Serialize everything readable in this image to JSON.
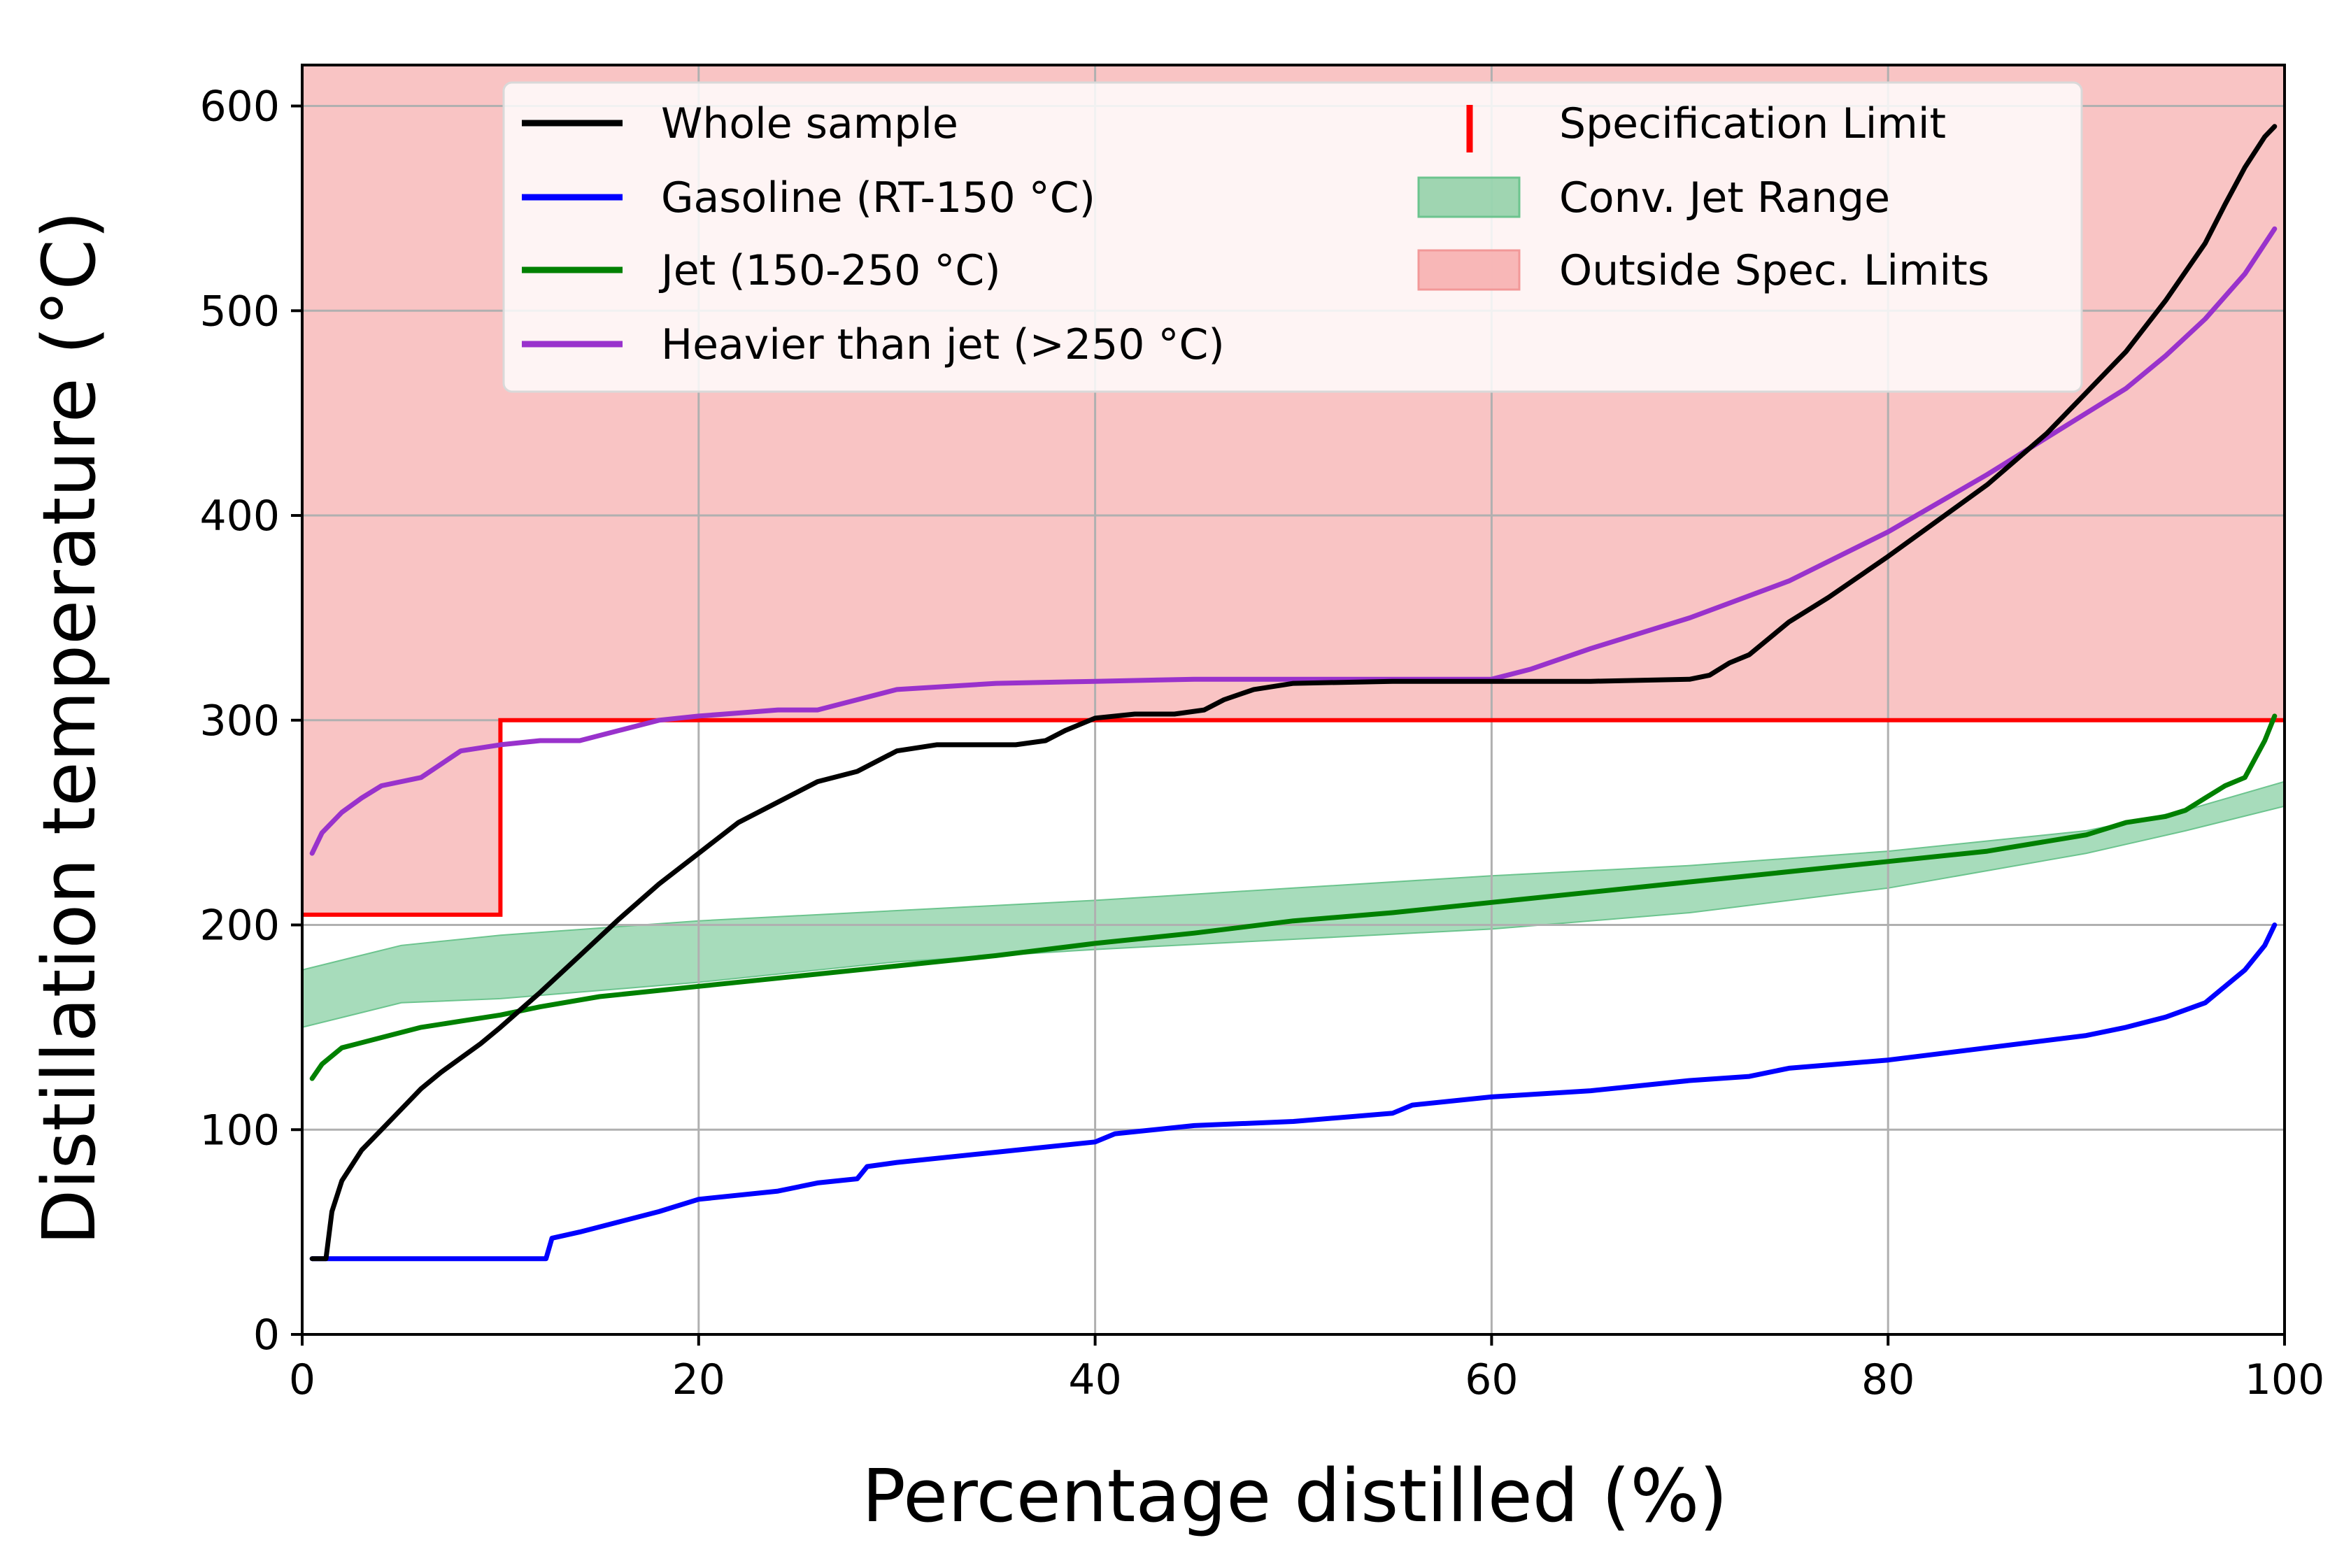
{
  "chart_data": {
    "type": "line",
    "title": "",
    "xlabel": "Percentage distilled (%)",
    "ylabel": "Distillation temperature (°C)",
    "xlim": [
      0,
      100
    ],
    "ylim": [
      0,
      620
    ],
    "xticks": [
      0,
      20,
      40,
      60,
      80,
      100
    ],
    "yticks": [
      0,
      100,
      200,
      300,
      400,
      500,
      600
    ],
    "grid": true,
    "legend_position": "top-center",
    "colors": {
      "whole": "#000000",
      "gasoline": "#0000ff",
      "jet": "#008000",
      "heavier": "#9932cc",
      "spec": "#ff0000",
      "jet_range_fill": "#6cc48e",
      "outside_fill": "#f7b0b0"
    },
    "legend": [
      {
        "key": "whole",
        "label": "Whole sample",
        "kind": "line"
      },
      {
        "key": "gasoline",
        "label": "Gasoline (RT-150 °C)",
        "kind": "line"
      },
      {
        "key": "jet",
        "label": "Jet (150-250 °C)",
        "kind": "line"
      },
      {
        "key": "heavier",
        "label": "Heavier than jet (>250 °C)",
        "kind": "line"
      },
      {
        "key": "spec",
        "label": "Specification Limit",
        "kind": "vbar"
      },
      {
        "key": "jet_range_fill",
        "label": "Conv. Jet Range",
        "kind": "patch"
      },
      {
        "key": "outside_fill",
        "label": "Outside Spec. Limits",
        "kind": "patch"
      }
    ],
    "series": [
      {
        "name": "Whole sample",
        "key": "whole",
        "x": [
          0.5,
          1.2,
          1.5,
          2,
          3,
          4,
          5,
          6,
          7,
          8,
          9,
          10,
          12,
          14,
          16,
          18,
          20,
          22,
          24,
          26,
          28,
          30,
          32,
          34,
          36,
          37.5,
          38.5,
          40,
          42,
          44,
          45.5,
          46.5,
          48,
          50,
          55,
          60,
          65,
          70,
          71,
          72,
          73,
          74,
          75,
          77,
          80,
          85,
          88,
          90,
          92,
          94,
          96,
          97,
          98,
          99,
          99.5
        ],
        "y": [
          37,
          37,
          60,
          75,
          90,
          100,
          110,
          120,
          128,
          135,
          142,
          150,
          167,
          185,
          203,
          220,
          235,
          250,
          260,
          270,
          275,
          285,
          288,
          288,
          288,
          290,
          295,
          301,
          303,
          303,
          305,
          310,
          315,
          318,
          319,
          319,
          319,
          320,
          322,
          328,
          332,
          340,
          348,
          360,
          380,
          415,
          440,
          460,
          480,
          505,
          533,
          552,
          570,
          585,
          590
        ]
      },
      {
        "name": "Gasoline (RT-150 °C)",
        "key": "gasoline",
        "x": [
          0.5,
          5,
          10,
          12.3,
          12.6,
          14,
          16,
          18,
          20,
          24,
          26,
          28,
          28.5,
          30,
          35,
          40,
          41,
          45,
          50,
          55,
          56,
          60,
          65,
          70,
          73,
          75,
          80,
          85,
          90,
          92,
          94,
          96,
          97,
          98,
          99,
          99.5
        ],
        "y": [
          37,
          37,
          37,
          37,
          47,
          50,
          55,
          60,
          66,
          70,
          74,
          76,
          82,
          84,
          89,
          94,
          98,
          102,
          104,
          108,
          112,
          116,
          119,
          124,
          126,
          130,
          134,
          140,
          146,
          150,
          155,
          162,
          170,
          178,
          190,
          200
        ]
      },
      {
        "name": "Jet (150-250 °C)",
        "key": "jet",
        "x": [
          0.5,
          1,
          2,
          4,
          6,
          8,
          10,
          12,
          15,
          20,
          25,
          30,
          35,
          40,
          45,
          50,
          55,
          60,
          65,
          70,
          75,
          80,
          85,
          90,
          92,
          94,
          95,
          96,
          97,
          98,
          99,
          99.5
        ],
        "y": [
          125,
          132,
          140,
          145,
          150,
          153,
          156,
          160,
          165,
          170,
          175,
          180,
          185,
          191,
          196,
          202,
          206,
          211,
          216,
          221,
          226,
          231,
          236,
          244,
          250,
          253,
          256,
          262,
          268,
          272,
          290,
          302
        ]
      },
      {
        "name": "Heavier than jet (>250 °C)",
        "key": "heavier",
        "x": [
          0.5,
          1,
          2,
          3,
          4,
          6,
          8,
          10,
          12,
          14,
          16,
          18,
          20,
          24,
          26,
          28,
          30,
          35,
          40,
          45,
          50,
          55,
          60,
          62,
          65,
          70,
          75,
          80,
          85,
          90,
          92,
          94,
          96,
          98,
          99.5
        ],
        "y": [
          235,
          245,
          255,
          262,
          268,
          272,
          285,
          288,
          290,
          290,
          295,
          300,
          302,
          305,
          305,
          310,
          315,
          318,
          319,
          320,
          320,
          320,
          320,
          325,
          335,
          350,
          368,
          392,
          420,
          450,
          462,
          478,
          496,
          518,
          540
        ]
      }
    ],
    "specification_limit": {
      "x": [
        0,
        10,
        10,
        100
      ],
      "y": [
        205,
        205,
        300,
        300
      ]
    },
    "conv_jet_range": {
      "x": [
        0,
        5,
        10,
        20,
        30,
        40,
        50,
        60,
        70,
        80,
        90,
        95,
        100
      ],
      "lower": [
        150,
        162,
        164,
        172,
        182,
        188,
        193,
        198,
        206,
        218,
        235,
        246,
        258
      ],
      "upper": [
        178,
        190,
        195,
        202,
        207,
        212,
        218,
        224,
        229,
        236,
        246,
        256,
        270
      ]
    },
    "outside_spec_limits": {
      "x": [
        0,
        10,
        10,
        100
      ],
      "lower": [
        205,
        205,
        300,
        300
      ],
      "upper": [
        620,
        620,
        620,
        620
      ]
    }
  }
}
